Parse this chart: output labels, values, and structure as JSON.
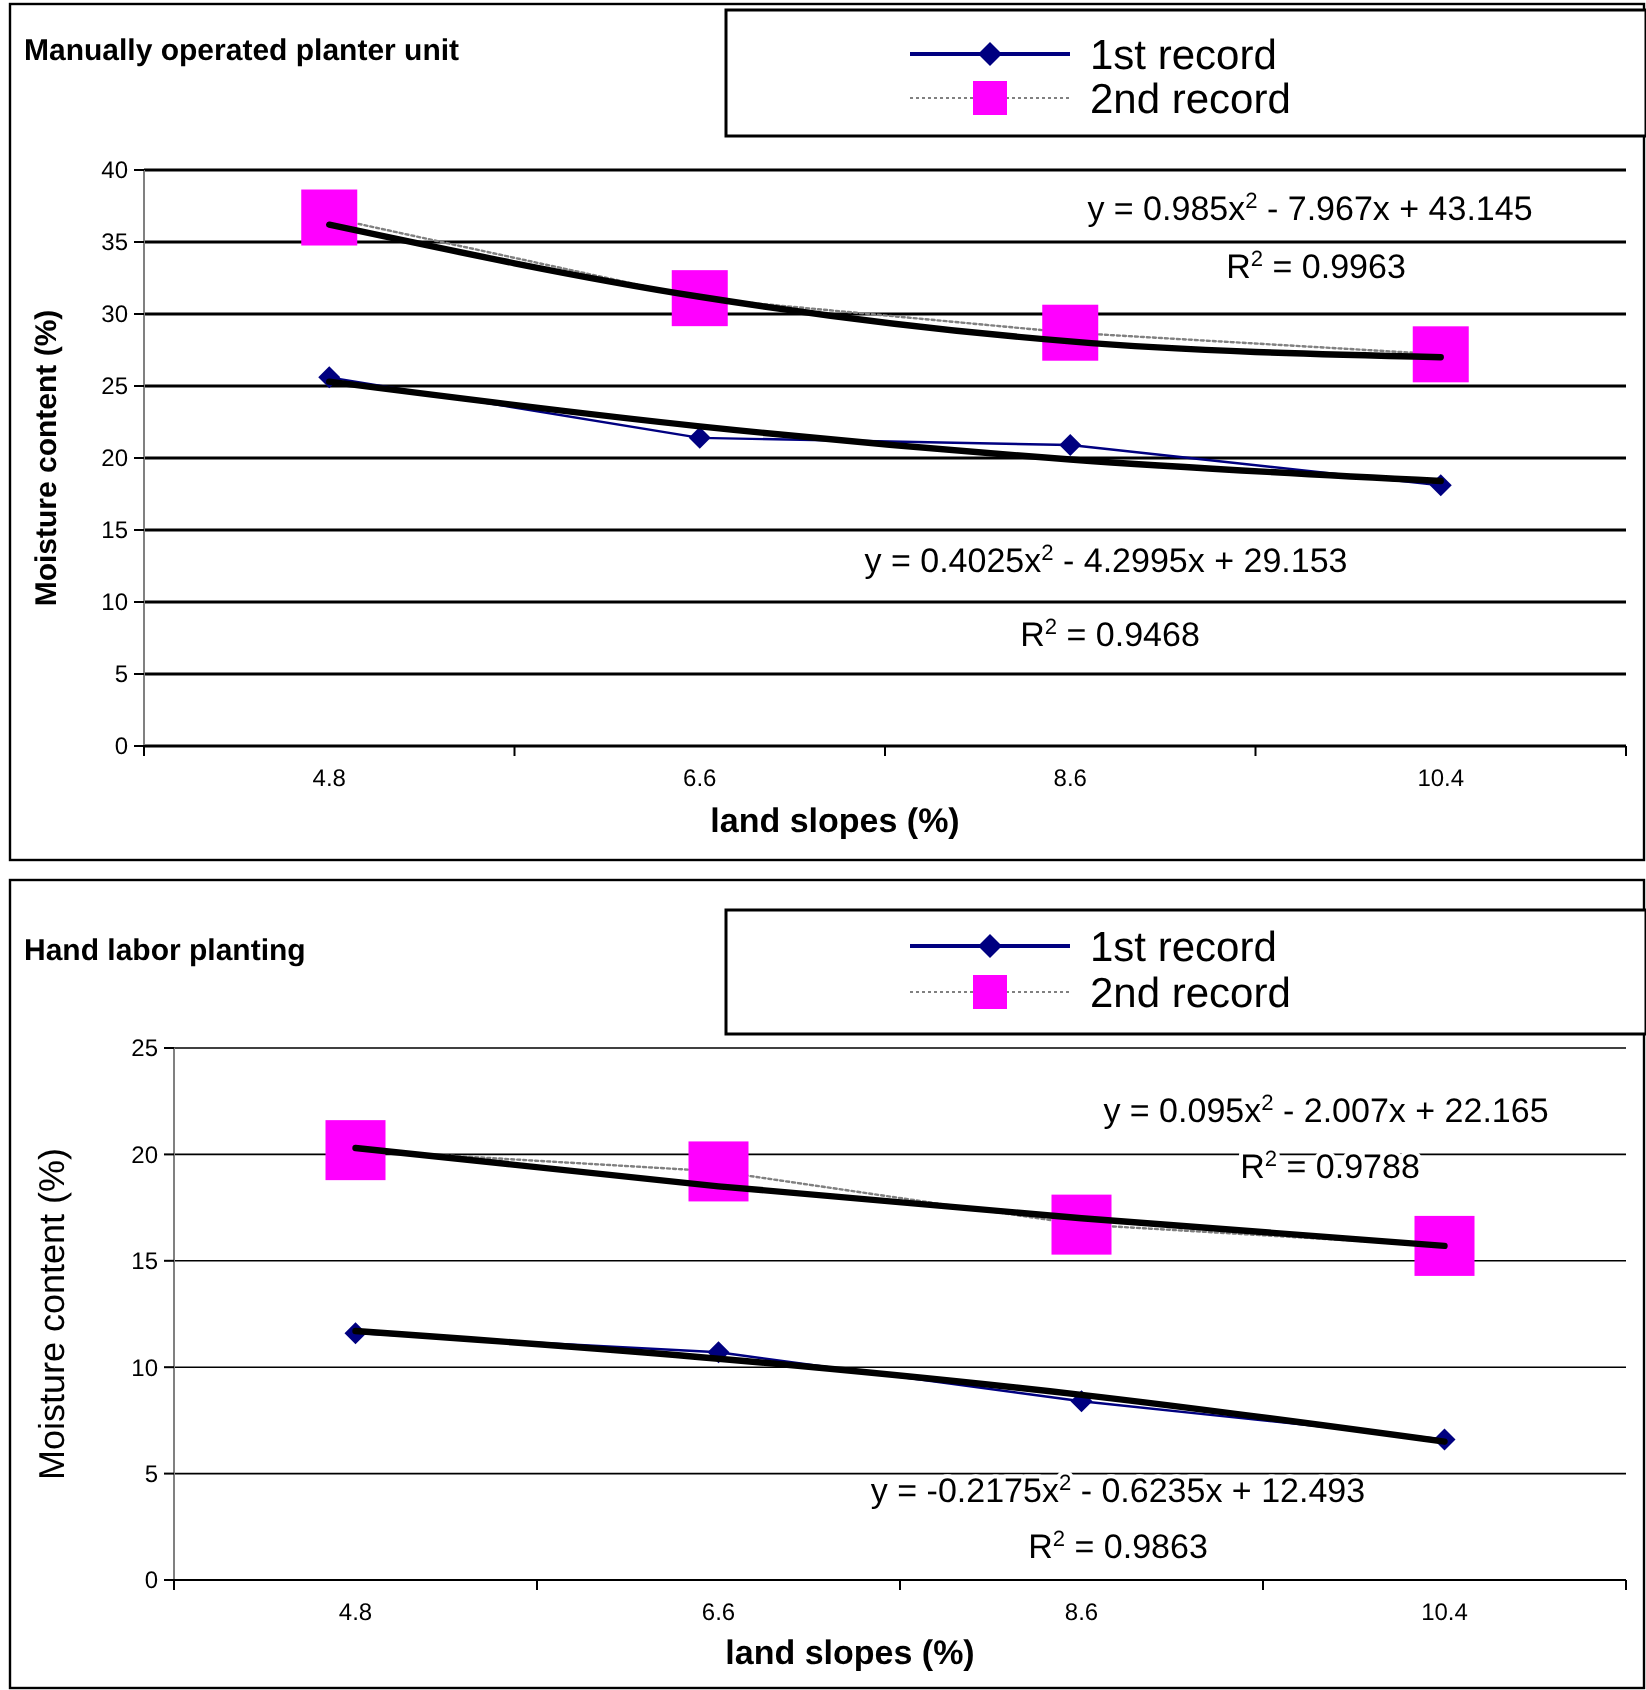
{
  "chart_data": [
    {
      "type": "line",
      "title": "Manually operated planter unit",
      "xlabel": "land slopes (%)",
      "ylabel": "Moisture content (%)",
      "categories": [
        "4.8",
        "6.6",
        "8.6",
        "10.4"
      ],
      "ylim": [
        0,
        40
      ],
      "yticks": [
        0,
        5,
        10,
        15,
        20,
        25,
        30,
        35,
        40
      ],
      "grid": "y",
      "legend": "top right",
      "annotations": [
        "y = 0.985x$^{2}$ - 7.967x + 43.145",
        "R$^{2}$ = 0.9963",
        "y = 0.4025x$^{2}$ - 4.2995x + 29.153",
        "R$^{2}$ = 0.9468"
      ],
      "series": [
        {
          "name": "1st record",
          "color": "#000080",
          "marker": "diamond",
          "line_style": "solid",
          "values": [
            25.6,
            21.4,
            20.9,
            18.1
          ]
        },
        {
          "name": "2nd record",
          "color": "#ff00ff",
          "marker": "square",
          "line_style": "dotted",
          "values": [
            36.7,
            31.1,
            28.7,
            27.2
          ]
        },
        {
          "color": "#000000",
          "marker": "none",
          "line_style": "solid",
          "values": [
            36.2,
            31.2,
            28.1,
            27.0
          ]
        },
        {
          "color": "#000000",
          "marker": "none",
          "line_style": "solid",
          "values": [
            25.3,
            22.2,
            19.9,
            18.4
          ]
        }
      ]
    },
    {
      "type": "line",
      "title": "Hand labor planting",
      "xlabel": "land slopes (%)",
      "ylabel": "Moisture content (%)",
      "categories": [
        "4.8",
        "6.6",
        "8.6",
        "10.4"
      ],
      "ylim": [
        0,
        25
      ],
      "yticks": [
        0,
        5,
        10,
        15,
        20,
        25
      ],
      "grid": "y",
      "legend": "top right",
      "annotations": [
        "y = 0.095x$^{2}$ - 2.007x + 22.165",
        "R$^{2}$ = 0.9788",
        "y = -0.2175x$^{2}$ - 0.6235x + 12.493",
        "R$^{2}$ = 0.9863"
      ],
      "series": [
        {
          "name": "1st record",
          "color": "#000080",
          "marker": "diamond",
          "line_style": "solid",
          "values": [
            11.6,
            10.7,
            8.4,
            6.6
          ]
        },
        {
          "name": "2nd record",
          "color": "#ff00ff",
          "marker": "square",
          "line_style": "dotted",
          "values": [
            20.2,
            19.2,
            16.7,
            15.7
          ]
        },
        {
          "color": "#000000",
          "marker": "none",
          "line_style": "solid",
          "values": [
            20.3,
            18.5,
            17.0,
            15.7
          ]
        },
        {
          "color": "#000000",
          "marker": "none",
          "line_style": "solid",
          "values": [
            11.7,
            10.4,
            8.7,
            6.5
          ]
        }
      ]
    }
  ]
}
